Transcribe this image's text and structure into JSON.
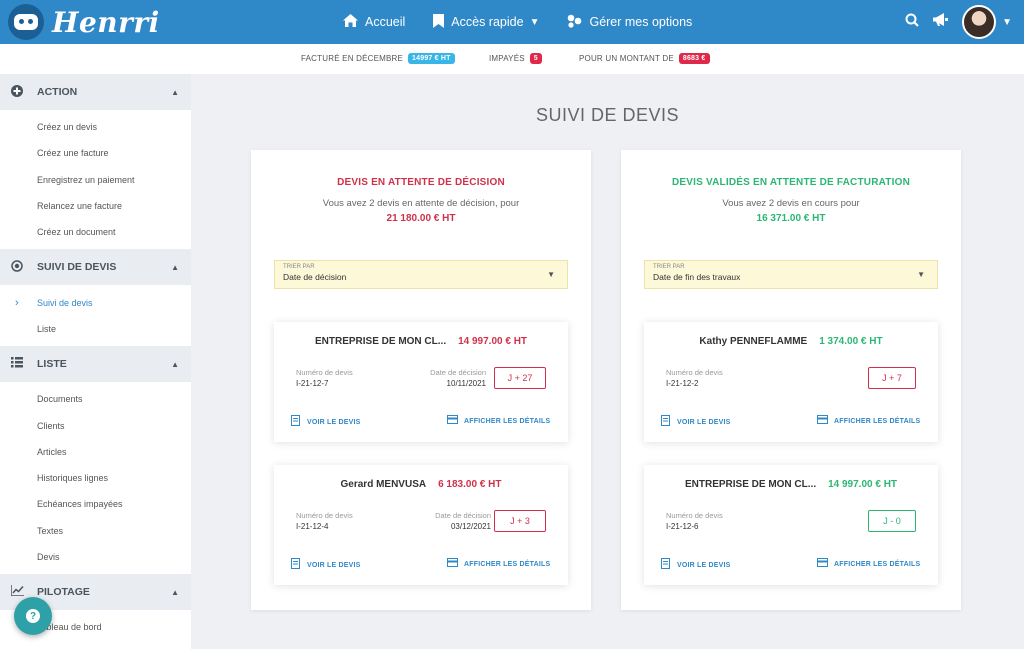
{
  "app": {
    "logo_text": "Henrri"
  },
  "nav": {
    "home": {
      "label": "Accueil",
      "icon": "home-icon"
    },
    "quick": {
      "label": "Accès rapide",
      "icon": "bookmark-icon"
    },
    "options": {
      "label": "Gérer mes options",
      "icon": "options-icon"
    }
  },
  "statusbar": {
    "billed_label": "FACTURÉ EN DÉCEMBRE",
    "billed_value": "14997 € HT",
    "unpaid_label": "IMPAYÉS",
    "unpaid_value": "5",
    "amount_label": "POUR UN MONTANT DE",
    "amount_value": "8683 €"
  },
  "sidebar": {
    "action": {
      "title": "ACTION",
      "items": [
        "Créez un devis",
        "Créez une facture",
        "Enregistrez un paiement",
        "Relancez une facture",
        "Créez un document"
      ]
    },
    "suivi": {
      "title": "SUIVI DE DEVIS",
      "items": [
        "Suivi de devis",
        "Liste"
      ],
      "active_index": 0
    },
    "liste": {
      "title": "LISTE",
      "items": [
        "Documents",
        "Clients",
        "Articles",
        "Historiques lignes",
        "Echéances impayées",
        "Textes",
        "Devis"
      ]
    },
    "pilotage": {
      "title": "PILOTAGE",
      "items": [
        "Tableau de bord"
      ]
    }
  },
  "main": {
    "title": "SUIVI DE DEVIS"
  },
  "left_panel": {
    "title": "DEVIS EN ATTENTE DE DÉCISION",
    "subtitle": "Vous avez 2 devis en attente de décision, pour",
    "amount": "21 180.00 € HT",
    "sort_label": "TRIER PAR",
    "sort_value": "Date de décision",
    "color": "#d0314a",
    "cards": [
      {
        "client": "ENTREPRISE DE MON CL...",
        "amount": "14 997.00 € HT",
        "num_label": "Numéro de devis",
        "num": "I-21-12-7",
        "date_label": "Date de décision",
        "date": "10/11/2021",
        "j": "J + 27"
      },
      {
        "client": "Gerard MENVUSA",
        "amount": "6 183.00 € HT",
        "num_label": "Numéro de devis",
        "num": "I-21-12-4",
        "date_label": "Date de décision",
        "date": "03/12/2021",
        "j": "J + 3"
      }
    ]
  },
  "right_panel": {
    "title": "DEVIS VALIDÉS EN ATTENTE DE FACTURATION",
    "subtitle": "Vous avez 2 devis en cours pour",
    "amount": "16 371.00 € HT",
    "sort_label": "TRIER PAR",
    "sort_value": "Date de fin des travaux",
    "color": "#2bb673",
    "cards": [
      {
        "client": "Kathy PENNEFLAMME",
        "amount": "1 374.00 € HT",
        "num_label": "Numéro de devis",
        "num": "I-21-12-2",
        "j": "J + 7",
        "j_color": "#d0314a"
      },
      {
        "client": "ENTREPRISE DE MON CL...",
        "amount": "14 997.00 € HT",
        "num_label": "Numéro de devis",
        "num": "I-21-12-6",
        "j": "J - 0",
        "j_color": "#2bb673"
      }
    ]
  },
  "links": {
    "view": "VOIR LE DEVIS",
    "details": "AFFICHER LES DÉTAILS"
  },
  "colors": {
    "primary": "#2f88c7",
    "badge_blue": "#38b6e8",
    "badge_red": "#e0284a"
  }
}
